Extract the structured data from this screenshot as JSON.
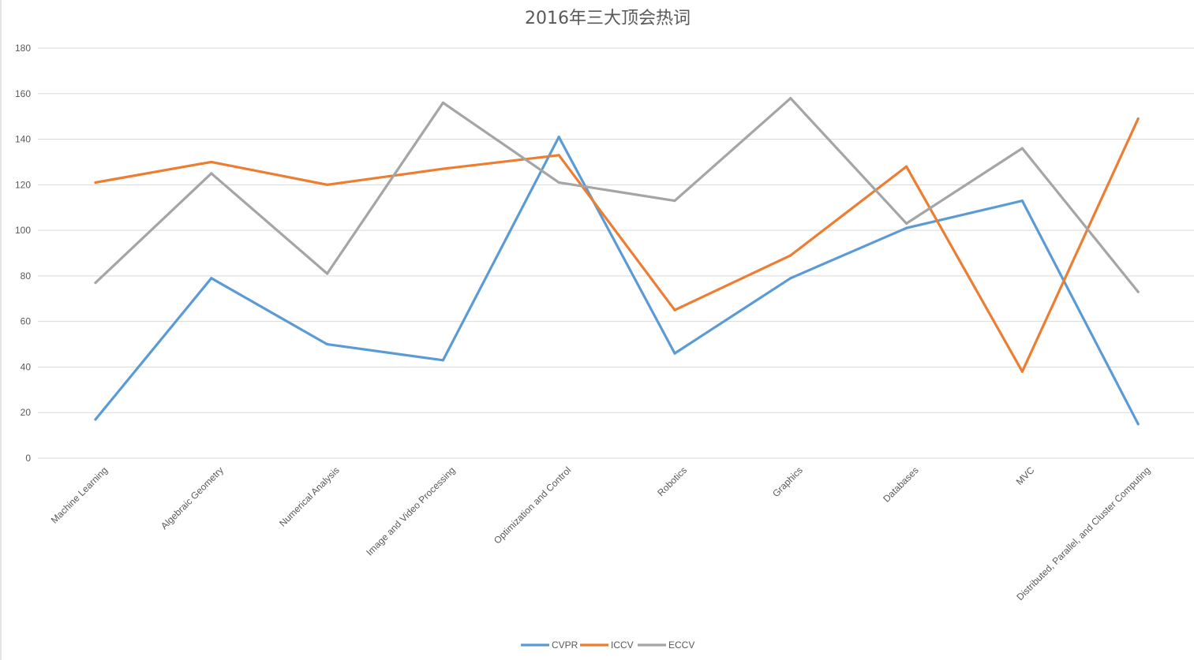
{
  "chart_data": {
    "type": "line",
    "title": "2016年三大顶会热词",
    "xlabel": "",
    "ylabel": "",
    "ylim": [
      0,
      180
    ],
    "yticks": [
      0,
      20,
      40,
      60,
      80,
      100,
      120,
      140,
      160,
      180
    ],
    "grid": true,
    "legend_position": "bottom",
    "categories": [
      "Machine Learning",
      "Algebraic Geometry",
      "Numerical Analysis",
      "Image and Video Processing",
      "Optimization and Control",
      "Robotics",
      "Graphics",
      "Databases",
      "MVC",
      "Distributed, Parallel, and Cluster Computing"
    ],
    "series": [
      {
        "name": "CVPR",
        "color": "#5b9bd5",
        "values": [
          17,
          79,
          50,
          43,
          141,
          46,
          79,
          101,
          113,
          15
        ]
      },
      {
        "name": "ICCV",
        "color": "#ed7d31",
        "values": [
          121,
          130,
          120,
          127,
          133,
          65,
          89,
          128,
          38,
          149
        ]
      },
      {
        "name": "ECCV",
        "color": "#a5a5a5",
        "values": [
          77,
          125,
          81,
          156,
          121,
          113,
          158,
          103,
          136,
          73
        ]
      }
    ]
  }
}
